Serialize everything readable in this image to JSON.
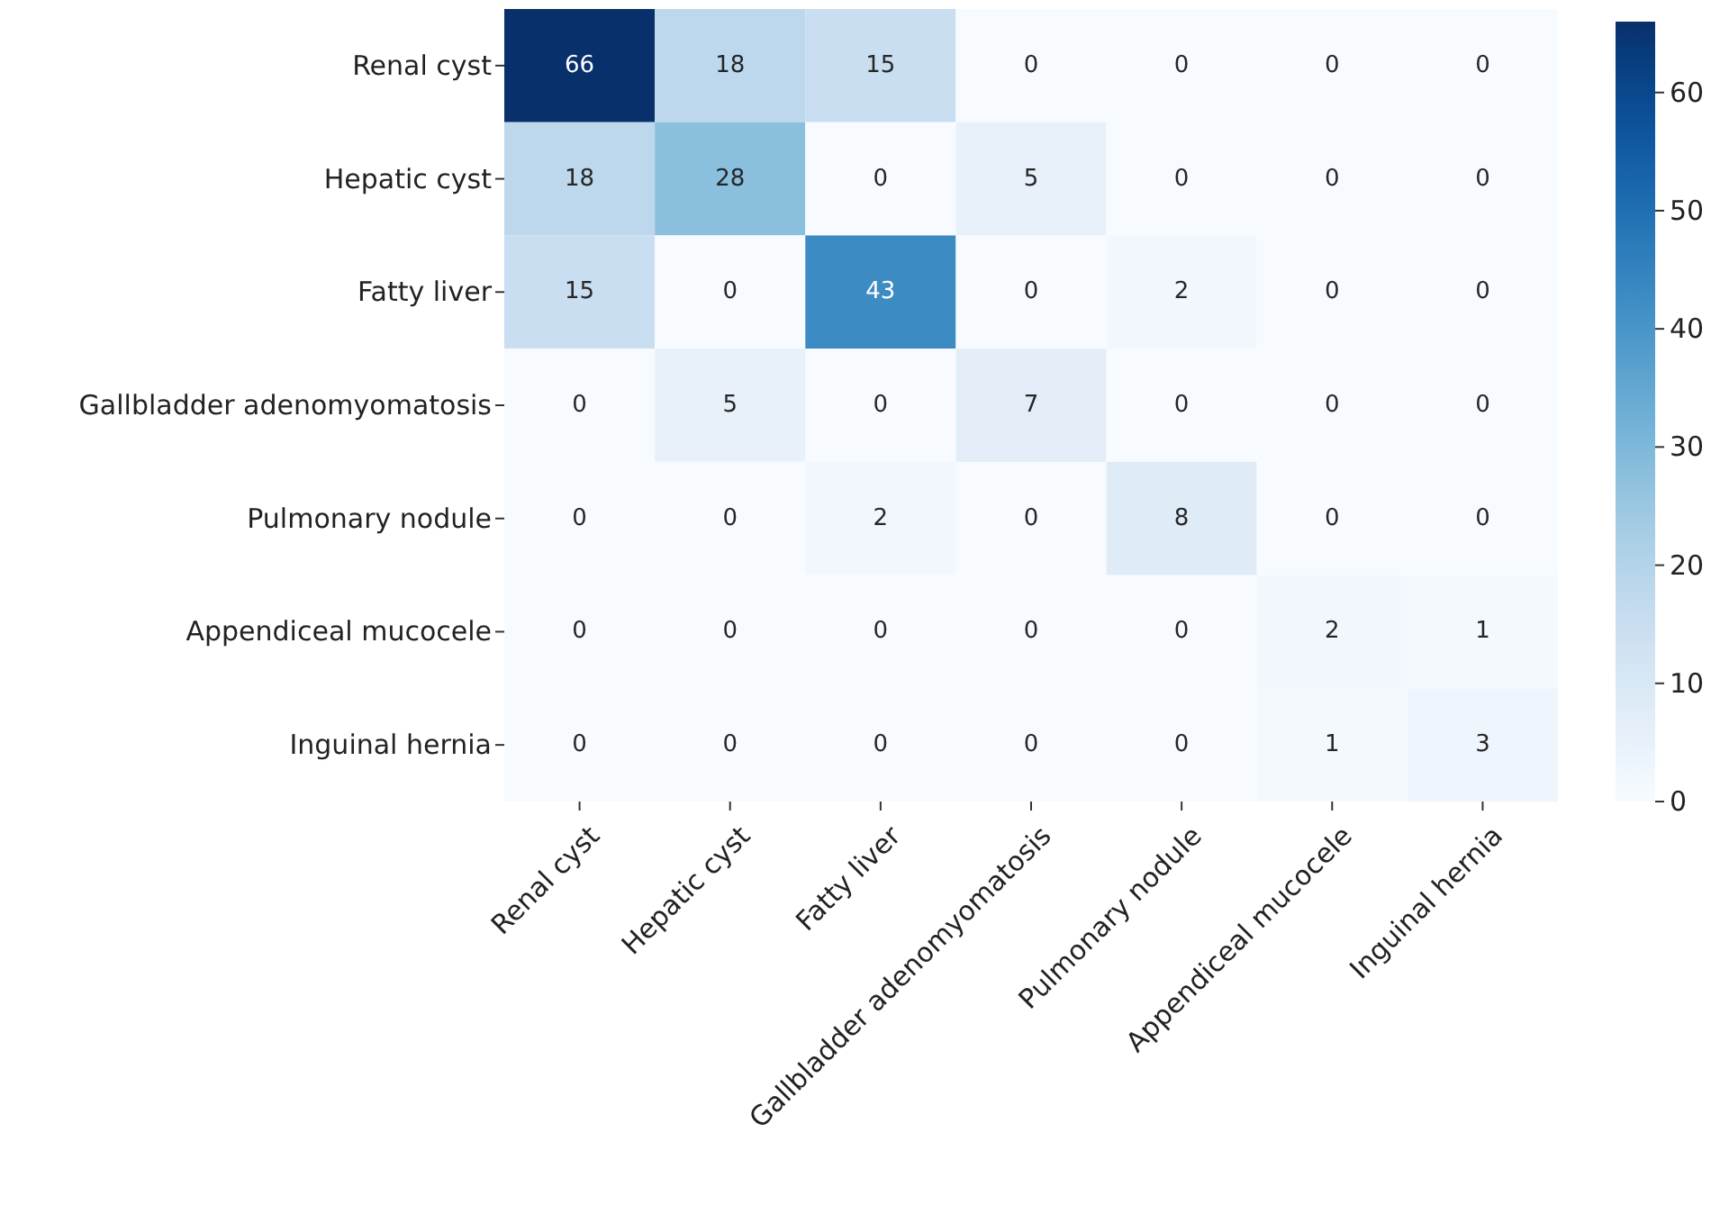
{
  "chart_data": {
    "type": "heatmap",
    "categories": [
      "Renal cyst",
      "Hepatic cyst",
      "Fatty liver",
      "Gallbladder adenomyomatosis",
      "Pulmonary nodule",
      "Appendiceal mucocele",
      "Inguinal hernia"
    ],
    "y_categories": [
      "Renal cyst",
      "Hepatic cyst",
      "Fatty liver",
      "Gallbladder adenomyomatosis",
      "Pulmonary nodule",
      "Appendiceal mucocele",
      "Inguinal hernia"
    ],
    "cells": [
      [
        66,
        18,
        15,
        0,
        0,
        0,
        0
      ],
      [
        18,
        28,
        0,
        5,
        0,
        0,
        0
      ],
      [
        15,
        0,
        43,
        0,
        2,
        0,
        0
      ],
      [
        0,
        5,
        0,
        7,
        0,
        0,
        0
      ],
      [
        0,
        0,
        2,
        0,
        8,
        0,
        0
      ],
      [
        0,
        0,
        0,
        0,
        0,
        2,
        1
      ],
      [
        0,
        0,
        0,
        0,
        0,
        1,
        3
      ]
    ],
    "data_labels": true,
    "clim": [
      0,
      66
    ],
    "cticks": [
      0,
      10,
      20,
      30,
      40,
      50,
      60
    ]
  }
}
